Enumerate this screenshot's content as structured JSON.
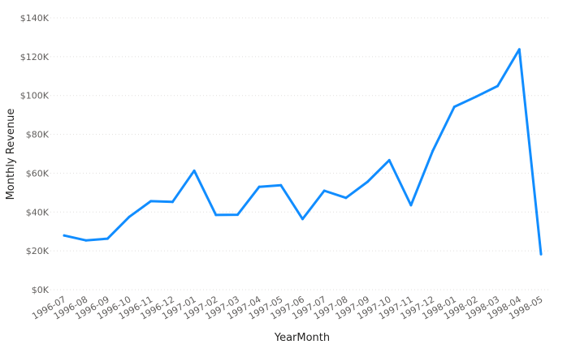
{
  "chart_data": {
    "type": "line",
    "title": "",
    "xlabel": "YearMonth",
    "ylabel": "Monthly Revenue",
    "categories": [
      "1996-07",
      "1996-08",
      "1996-09",
      "1996-10",
      "1996-11",
      "1996-12",
      "1997-01",
      "1997-02",
      "1997-03",
      "1997-04",
      "1997-05",
      "1997-06",
      "1997-07",
      "1997-08",
      "1997-09",
      "1997-10",
      "1997-11",
      "1997-12",
      "1998-01",
      "1998-02",
      "1998-03",
      "1998-04",
      "1998-05"
    ],
    "series": [
      {
        "color": "#118dff",
        "values": [
          27900,
          25400,
          26300,
          37500,
          45600,
          45200,
          61300,
          38500,
          38600,
          53000,
          53800,
          36400,
          51000,
          47300,
          55600,
          66700,
          43500,
          71400,
          94200,
          99400,
          104900,
          123800,
          18300
        ]
      }
    ],
    "ylim": [
      0,
      140000
    ],
    "yticks": [
      0,
      20000,
      40000,
      60000,
      80000,
      100000,
      120000,
      140000
    ],
    "ytick_labels": [
      "$0K",
      "$20K",
      "$40K",
      "$60K",
      "$80K",
      "$100K",
      "$120K",
      "$140K"
    ],
    "grid": true,
    "legend": "none"
  }
}
